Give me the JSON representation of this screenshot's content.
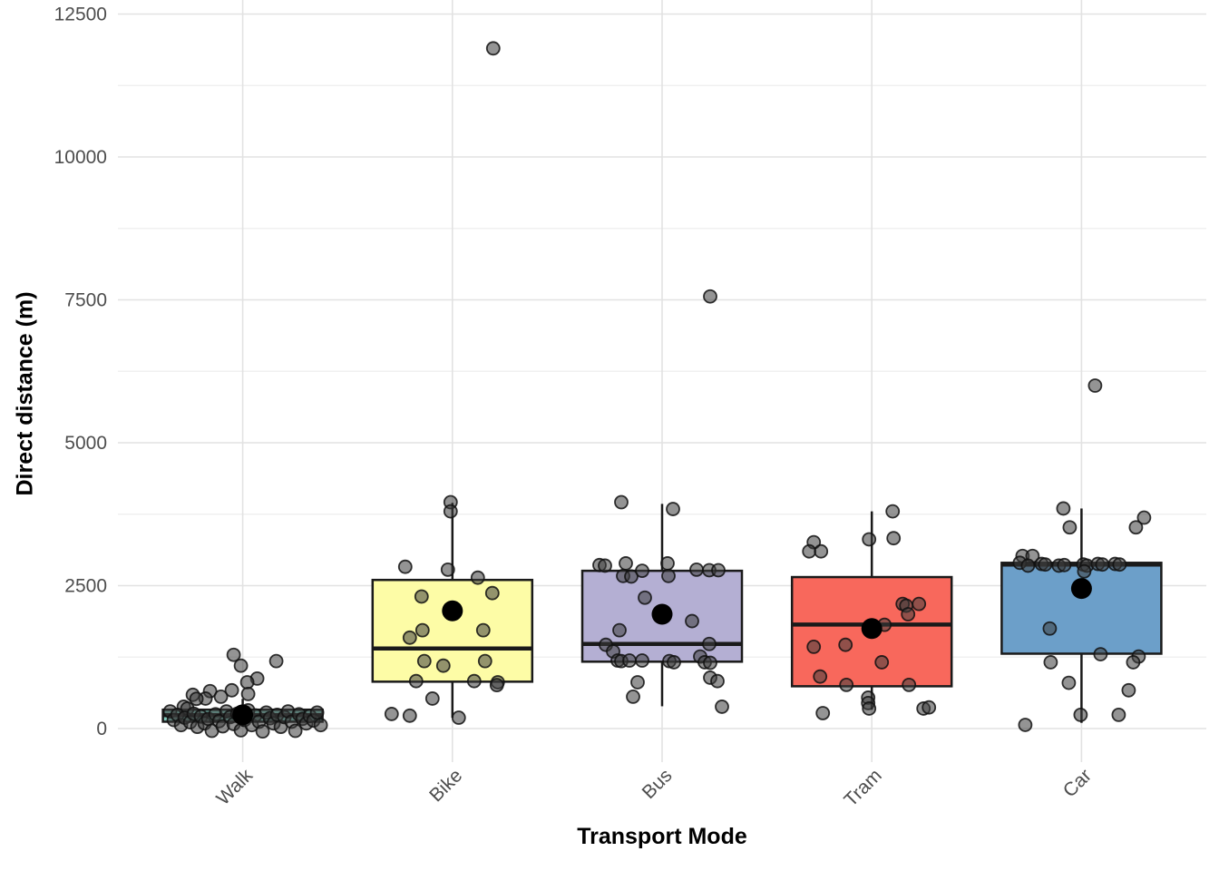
{
  "chart_data": {
    "type": "boxplot",
    "title": "",
    "xlabel": "Transport Mode",
    "ylabel": "Direct distance (m)",
    "categories": [
      "Walk",
      "Bike",
      "Bus",
      "Tram",
      "Car"
    ],
    "y_ticks": [
      0,
      2500,
      5000,
      7500,
      10000,
      12500
    ],
    "y_minor_ticks": [
      1250,
      3750,
      6250,
      8750,
      11250
    ],
    "ylim": [
      -590,
      12740
    ],
    "grid": true,
    "legend": "none",
    "box_fill_colors": [
      "#82CBBD",
      "#FDFCA6",
      "#B4AFD3",
      "#F8685C",
      "#6C9FC9"
    ],
    "boxes": [
      {
        "category": "Walk",
        "whisker_low": 30,
        "q1": 120,
        "median": 235,
        "q3": 330,
        "whisker_high": 520,
        "mean": 240
      },
      {
        "category": "Bike",
        "whisker_low": 190,
        "q1": 820,
        "median": 1400,
        "q3": 2600,
        "whisker_high": 3950,
        "mean": 2060
      },
      {
        "category": "Bus",
        "whisker_low": 390,
        "q1": 1170,
        "median": 1480,
        "q3": 2760,
        "whisker_high": 3930,
        "mean": 2000
      },
      {
        "category": "Tram",
        "whisker_low": 330,
        "q1": 740,
        "median": 1820,
        "q3": 2650,
        "whisker_high": 3800,
        "mean": 1750
      },
      {
        "category": "Car",
        "whisker_low": 100,
        "q1": 1310,
        "median": 2870,
        "q3": 2900,
        "whisker_high": 3850,
        "mean": 2450
      }
    ],
    "outliers": [
      {
        "category": "Bike",
        "value": 11900
      },
      {
        "category": "Bus",
        "value": 7560
      },
      {
        "category": "Car",
        "value": 6000
      }
    ],
    "jitter_points": {
      "Walk": [
        [
          -10,
          1290
        ],
        [
          37,
          1180
        ],
        [
          -2,
          1100
        ],
        [
          16,
          875
        ],
        [
          5,
          810
        ],
        [
          -36,
          655
        ],
        [
          -12,
          670
        ],
        [
          6,
          605
        ],
        [
          -55,
          590
        ],
        [
          -24,
          557
        ],
        [
          -41,
          525
        ],
        [
          -51,
          520
        ],
        [
          -65,
          382
        ],
        [
          -61,
          350
        ],
        [
          -80,
          300
        ],
        [
          -76,
          150
        ],
        [
          -72,
          240
        ],
        [
          -68,
          60
        ],
        [
          -64,
          190
        ],
        [
          -58,
          110
        ],
        [
          -54,
          260
        ],
        [
          -50,
          30
        ],
        [
          -46,
          210
        ],
        [
          -42,
          90
        ],
        [
          -38,
          170
        ],
        [
          -34,
          -40
        ],
        [
          -30,
          250
        ],
        [
          -26,
          130
        ],
        [
          -22,
          40
        ],
        [
          -18,
          300
        ],
        [
          -14,
          200
        ],
        [
          -10,
          80
        ],
        [
          -6,
          260
        ],
        [
          -2,
          -30
        ],
        [
          2,
          150
        ],
        [
          6,
          320
        ],
        [
          10,
          60
        ],
        [
          14,
          230
        ],
        [
          18,
          120
        ],
        [
          22,
          -50
        ],
        [
          26,
          280
        ],
        [
          30,
          180
        ],
        [
          34,
          90
        ],
        [
          38,
          240
        ],
        [
          42,
          30
        ],
        [
          46,
          200
        ],
        [
          50,
          300
        ],
        [
          54,
          120
        ],
        [
          58,
          -40
        ],
        [
          62,
          250
        ],
        [
          66,
          170
        ],
        [
          70,
          90
        ],
        [
          74,
          220
        ],
        [
          78,
          140
        ],
        [
          82,
          280
        ],
        [
          86,
          60
        ]
      ],
      "Bike": [
        [
          45,
          11900
        ],
        [
          -2,
          3960
        ],
        [
          -2,
          3800
        ],
        [
          -52,
          2830
        ],
        [
          -5,
          2780
        ],
        [
          28,
          2640
        ],
        [
          44,
          2370
        ],
        [
          -34,
          2310
        ],
        [
          -33,
          1720
        ],
        [
          34,
          1720
        ],
        [
          -47,
          1590
        ],
        [
          -31,
          1180
        ],
        [
          36,
          1180
        ],
        [
          -10,
          1100
        ],
        [
          -40,
          830
        ],
        [
          24,
          830
        ],
        [
          50,
          810
        ],
        [
          49,
          760
        ],
        [
          -22,
          525
        ],
        [
          -67,
          255
        ],
        [
          -47,
          225
        ],
        [
          7,
          190
        ]
      ],
      "Bus": [
        [
          53,
          7560
        ],
        [
          -45,
          3960
        ],
        [
          12,
          3840
        ],
        [
          -69,
          2860
        ],
        [
          -63,
          2850
        ],
        [
          -40,
          2890
        ],
        [
          -22,
          2760
        ],
        [
          6,
          2890
        ],
        [
          -43,
          2670
        ],
        [
          -34,
          2660
        ],
        [
          7,
          2670
        ],
        [
          38,
          2780
        ],
        [
          52,
          2770
        ],
        [
          62,
          2770
        ],
        [
          -19,
          2290
        ],
        [
          33,
          1880
        ],
        [
          -47,
          1720
        ],
        [
          -62,
          1465
        ],
        [
          52,
          1480
        ],
        [
          -54,
          1350
        ],
        [
          -49,
          1190
        ],
        [
          -45,
          1180
        ],
        [
          -36,
          1190
        ],
        [
          -22,
          1190
        ],
        [
          8,
          1180
        ],
        [
          13,
          1160
        ],
        [
          42,
          1260
        ],
        [
          47,
          1160
        ],
        [
          53,
          1150
        ],
        [
          53,
          890
        ],
        [
          61,
          830
        ],
        [
          -27,
          810
        ],
        [
          -32,
          557
        ],
        [
          66,
          382
        ]
      ],
      "Tram": [
        [
          23,
          3800
        ],
        [
          -3,
          3310
        ],
        [
          24,
          3330
        ],
        [
          -64,
          3260
        ],
        [
          -69,
          3100
        ],
        [
          -56,
          3100
        ],
        [
          34,
          2180
        ],
        [
          38,
          2150
        ],
        [
          52,
          2180
        ],
        [
          40,
          2000
        ],
        [
          14,
          1815
        ],
        [
          -64,
          1430
        ],
        [
          -29,
          1465
        ],
        [
          11,
          1160
        ],
        [
          -57,
          910
        ],
        [
          -28,
          764
        ],
        [
          41,
          764
        ],
        [
          -4,
          541
        ],
        [
          -4,
          446
        ],
        [
          -3,
          350
        ],
        [
          -54,
          270
        ],
        [
          57,
          350
        ],
        [
          63,
          370
        ]
      ],
      "Car": [
        [
          15,
          6000
        ],
        [
          -20,
          3850
        ],
        [
          69,
          3690
        ],
        [
          60,
          3520
        ],
        [
          -13,
          3520
        ],
        [
          -65,
          3020
        ],
        [
          -54,
          3020
        ],
        [
          -68,
          2900
        ],
        [
          -59,
          2850
        ],
        [
          -44,
          2880
        ],
        [
          -40,
          2870
        ],
        [
          -25,
          2850
        ],
        [
          -19,
          2860
        ],
        [
          2,
          2870
        ],
        [
          6,
          2850
        ],
        [
          18,
          2880
        ],
        [
          23,
          2870
        ],
        [
          37,
          2880
        ],
        [
          42,
          2870
        ],
        [
          3,
          2750
        ],
        [
          -35,
          1750
        ],
        [
          21,
          1300
        ],
        [
          63,
          1260
        ],
        [
          57,
          1160
        ],
        [
          -34,
          1160
        ],
        [
          -14,
          800
        ],
        [
          52,
          670
        ],
        [
          -1,
          240
        ],
        [
          41,
          240
        ],
        [
          -62,
          64
        ]
      ]
    }
  },
  "style": {
    "background": "#ffffff",
    "grid_major_color": "#E2E2E2",
    "grid_minor_color": "#F0F0F0",
    "box_stroke_color": "#1A1A1A",
    "point_fill_color": "#3C3C3C",
    "point_stroke_color": "#111111",
    "mean_dot_color": "#000000",
    "tick_label_color": "#4D4D4D",
    "axis_title_color": "#000000"
  }
}
